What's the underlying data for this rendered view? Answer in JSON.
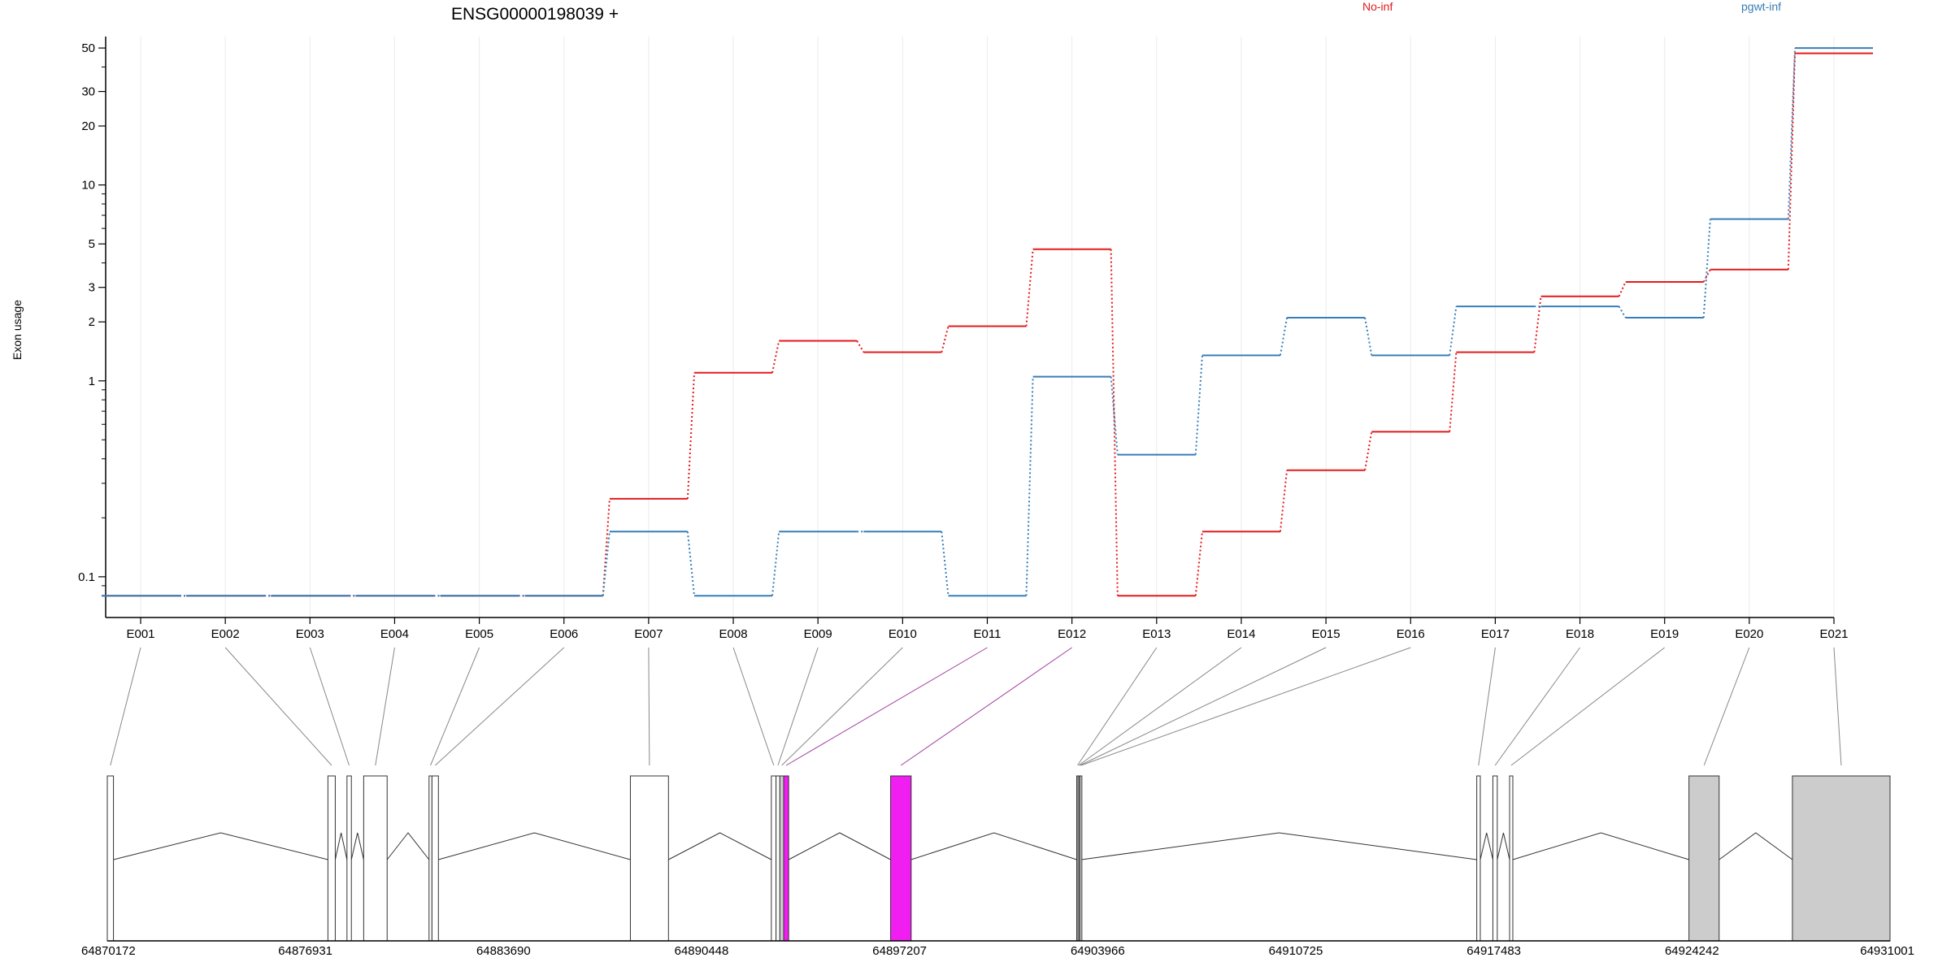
{
  "chart_data": {
    "type": "line",
    "title": "ENSG00000198039 +",
    "ylabel": "Exon usage",
    "xlabel": "",
    "ylim": [
      0.075,
      60
    ],
    "y_scale": "log",
    "yticks": [
      {
        "value": 0.1,
        "label": "0.1"
      },
      {
        "value": 1,
        "label": "1"
      },
      {
        "value": 2,
        "label": "2"
      },
      {
        "value": 3,
        "label": "3"
      },
      {
        "value": 5,
        "label": "5"
      },
      {
        "value": 10,
        "label": "10"
      },
      {
        "value": 20,
        "label": "20"
      },
      {
        "value": 30,
        "label": "30"
      },
      {
        "value": 50,
        "label": "50"
      }
    ],
    "categories": [
      "E001",
      "E002",
      "E003",
      "E004",
      "E005",
      "E006",
      "E007",
      "E008",
      "E009",
      "E010",
      "E011",
      "E012",
      "E013",
      "E014",
      "E015",
      "E016",
      "E017",
      "E018",
      "E019",
      "E020",
      "E021"
    ],
    "legend_placement": "top",
    "series": [
      {
        "name": "No-inf",
        "color": "#e41a1c",
        "values": [
          0.08,
          0.08,
          0.08,
          0.08,
          0.08,
          0.08,
          0.25,
          1.1,
          1.6,
          1.4,
          1.9,
          4.7,
          0.08,
          0.17,
          0.35,
          0.55,
          1.4,
          2.7,
          3.2,
          3.7,
          47
        ]
      },
      {
        "name": "pgwt-inf",
        "color": "#377eb8",
        "values": [
          0.08,
          0.08,
          0.08,
          0.08,
          0.08,
          0.08,
          0.17,
          0.08,
          0.17,
          0.17,
          0.08,
          1.05,
          0.42,
          1.35,
          2.1,
          1.35,
          2.4,
          2.4,
          2.1,
          6.7,
          50
        ]
      }
    ],
    "gene_model": {
      "coordinate_ticks": [
        "64870172",
        "64876931",
        "64883690",
        "64890448",
        "64897207",
        "64903966",
        "64910725",
        "64917483",
        "64924242",
        "64931001"
      ],
      "coord_start": 64870172,
      "coord_end": 64931001,
      "exon_fill_default": "#ffffff",
      "exon_fill_significant": "#f01ef0",
      "exon_fill_utr": "#cccccc",
      "exons": [
        {
          "id": "E001",
          "start": 64870172,
          "end": 64870382,
          "fill": "default"
        },
        {
          "id": "E002",
          "start": 64877700,
          "end": 64877950,
          "fill": "default"
        },
        {
          "id": "E003",
          "start": 64878350,
          "end": 64878500,
          "fill": "default"
        },
        {
          "id": "E004",
          "start": 64878920,
          "end": 64879720,
          "fill": "default"
        },
        {
          "id": "E005",
          "start": 64881150,
          "end": 64881250,
          "fill": "default"
        },
        {
          "id": "E006",
          "start": 64881250,
          "end": 64881470,
          "fill": "default"
        },
        {
          "id": "E007",
          "start": 64888020,
          "end": 64889320,
          "fill": "default"
        },
        {
          "id": "E008",
          "start": 64892830,
          "end": 64892990,
          "fill": "default"
        },
        {
          "id": "E009",
          "start": 64892990,
          "end": 64893120,
          "fill": "default"
        },
        {
          "id": "E010",
          "start": 64893120,
          "end": 64893250,
          "fill": "utr"
        },
        {
          "id": "E011",
          "start": 64893250,
          "end": 64893420,
          "fill": "significant"
        },
        {
          "id": "E012",
          "start": 64896900,
          "end": 64897600,
          "fill": "significant"
        },
        {
          "id": "E013",
          "start": 64903250,
          "end": 64903290,
          "fill": "default"
        },
        {
          "id": "E014",
          "start": 64903290,
          "end": 64903330,
          "fill": "default"
        },
        {
          "id": "E015",
          "start": 64903330,
          "end": 64903370,
          "fill": "default"
        },
        {
          "id": "E016",
          "start": 64903370,
          "end": 64903410,
          "fill": "default"
        },
        {
          "id": "E017",
          "start": 64916900,
          "end": 64917020,
          "fill": "default"
        },
        {
          "id": "E018",
          "start": 64917450,
          "end": 64917600,
          "fill": "default"
        },
        {
          "id": "E019",
          "start": 64918020,
          "end": 64918130,
          "fill": "default"
        },
        {
          "id": "E020",
          "start": 64924140,
          "end": 64925170,
          "fill": "utr"
        },
        {
          "id": "E021",
          "start": 64927670,
          "end": 64931001,
          "fill": "utr"
        }
      ]
    }
  }
}
